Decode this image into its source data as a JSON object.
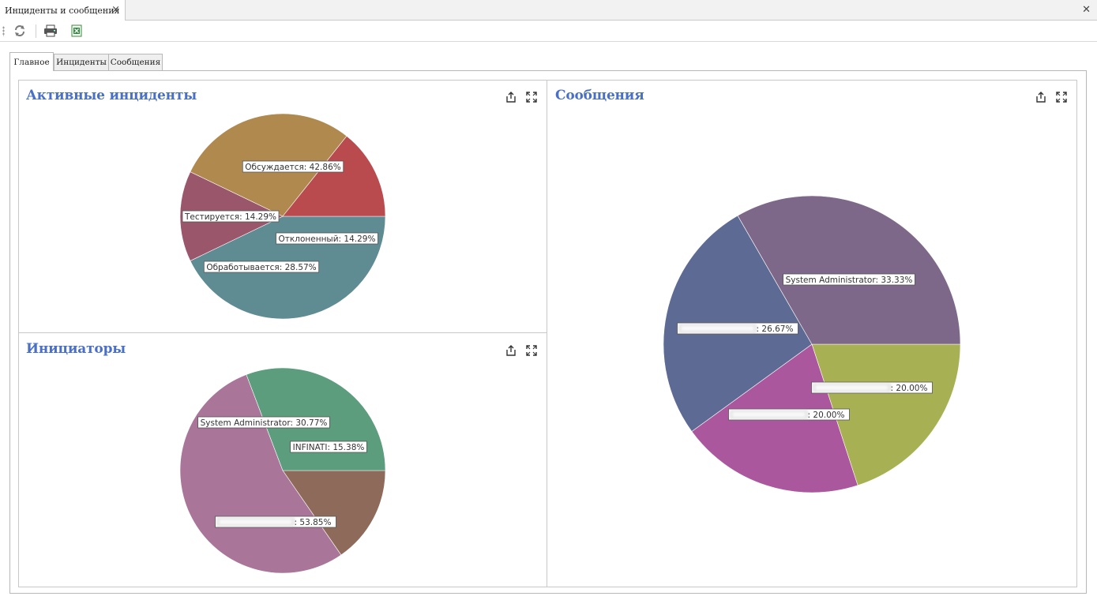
{
  "window": {
    "doc_tab_title": "Инциденты и сообщения",
    "close_glyph": "×",
    "window_close_glyph": "✕"
  },
  "toolbar": {
    "icons": [
      "refresh-icon",
      "print-icon",
      "export-excel-icon"
    ]
  },
  "page_tabs": [
    {
      "label": "Главное",
      "active": true
    },
    {
      "label": "Инциденты",
      "active": false
    },
    {
      "label": "Сообщения",
      "active": false
    }
  ],
  "cards": {
    "active_incidents": {
      "title": "Активные инциденты"
    },
    "initiators": {
      "title": "Инициаторы"
    },
    "messages": {
      "title": "Сообщения"
    },
    "icons": [
      "export-icon",
      "maximize-icon"
    ]
  },
  "chart_data": [
    {
      "type": "pie",
      "title": "Активные инциденты",
      "slices": [
        {
          "label": "Обсуждается",
          "value": 42.86,
          "display": "42.86%",
          "color": "#5f8b93"
        },
        {
          "label": "Отклоненный",
          "value": 14.29,
          "display": "14.29%",
          "color": "#9a566b"
        },
        {
          "label": "Обработывается",
          "value": 28.57,
          "display": "28.57%",
          "color": "#b0894f"
        },
        {
          "label": "Тестируется",
          "value": 14.29,
          "display": "14.29%",
          "color": "#b94a4e"
        }
      ]
    },
    {
      "type": "pie",
      "title": "Инициаторы",
      "slices": [
        {
          "label": "INFINATI",
          "value": 15.38,
          "display": "15.38%",
          "color": "#8e6a5a",
          "blurred": false
        },
        {
          "label": "",
          "value": 53.85,
          "display": "53.85%",
          "color": "#a97599",
          "blurred": true
        },
        {
          "label": "System Administrator",
          "value": 30.77,
          "display": "30.77%",
          "color": "#5b9d7c",
          "blurred": false
        }
      ]
    },
    {
      "type": "pie",
      "title": "Сообщения",
      "slices": [
        {
          "label": "",
          "value": 20.0,
          "display": "20.00%",
          "color": "#a7b153",
          "blurred": true
        },
        {
          "label": "",
          "value": 20.0,
          "display": "20.00%",
          "color": "#ab579d",
          "blurred": true
        },
        {
          "label": "",
          "value": 26.67,
          "display": "26.67%",
          "color": "#5d6a93",
          "blurred": true
        },
        {
          "label": "System Administrator",
          "value": 33.33,
          "display": "33.33%",
          "color": "#7e6889",
          "blurred": false
        }
      ]
    }
  ]
}
